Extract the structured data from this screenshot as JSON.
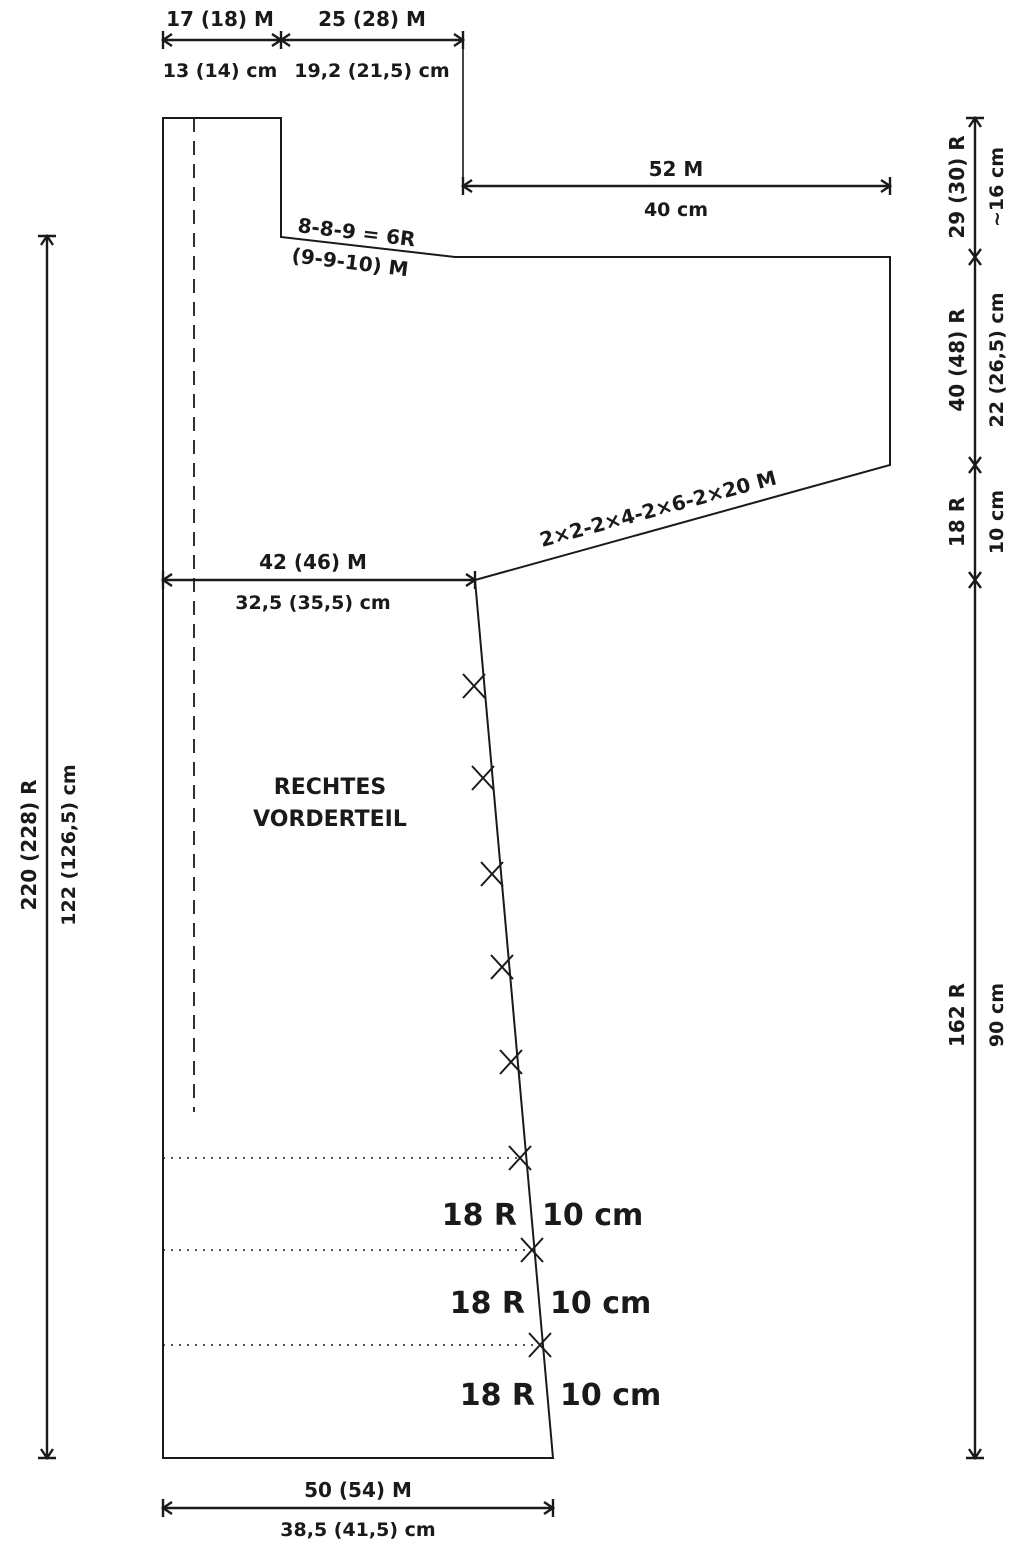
{
  "piece": {
    "title_line1": "RECHTES",
    "title_line2": "VORDERTEIL"
  },
  "top": {
    "left_stitches": "17 (18) M",
    "left_cm": "13 (14) cm",
    "right_stitches": "25 (28) M",
    "right_cm": "19,2 (21,5) cm"
  },
  "neck": {
    "decrease_rows": "8-8-9 = 6R",
    "decrease_stitches": "(9-9-10) M"
  },
  "sleeve_top": {
    "stitches": "52 M",
    "cm": "40 cm"
  },
  "sleeve_increase": {
    "label": "2×2-2×4-2×6-2×20 M"
  },
  "chest": {
    "stitches": "42 (46) M",
    "cm": "32,5 (35,5) cm"
  },
  "bottom": {
    "stitches": "50 (54) M",
    "cm": "38,5 (41,5) cm"
  },
  "left_side": {
    "rows": "220 (228) R",
    "cm": "122 (126,5) cm"
  },
  "right_side": {
    "seg1_rows": "29 (30) R",
    "seg1_cm": "~16 cm",
    "seg2_rows": "40 (48) R",
    "seg2_cm": "22 (26,5) cm",
    "seg3_rows": "18 R",
    "seg3_cm": "10 cm",
    "seg4_rows": "162 R",
    "seg4_cm": "90 cm"
  },
  "side_decreases": [
    {
      "rows": "18 R",
      "cm": "10 cm"
    },
    {
      "rows": "18 R",
      "cm": "10 cm"
    },
    {
      "rows": "18 R",
      "cm": "10 cm"
    }
  ]
}
